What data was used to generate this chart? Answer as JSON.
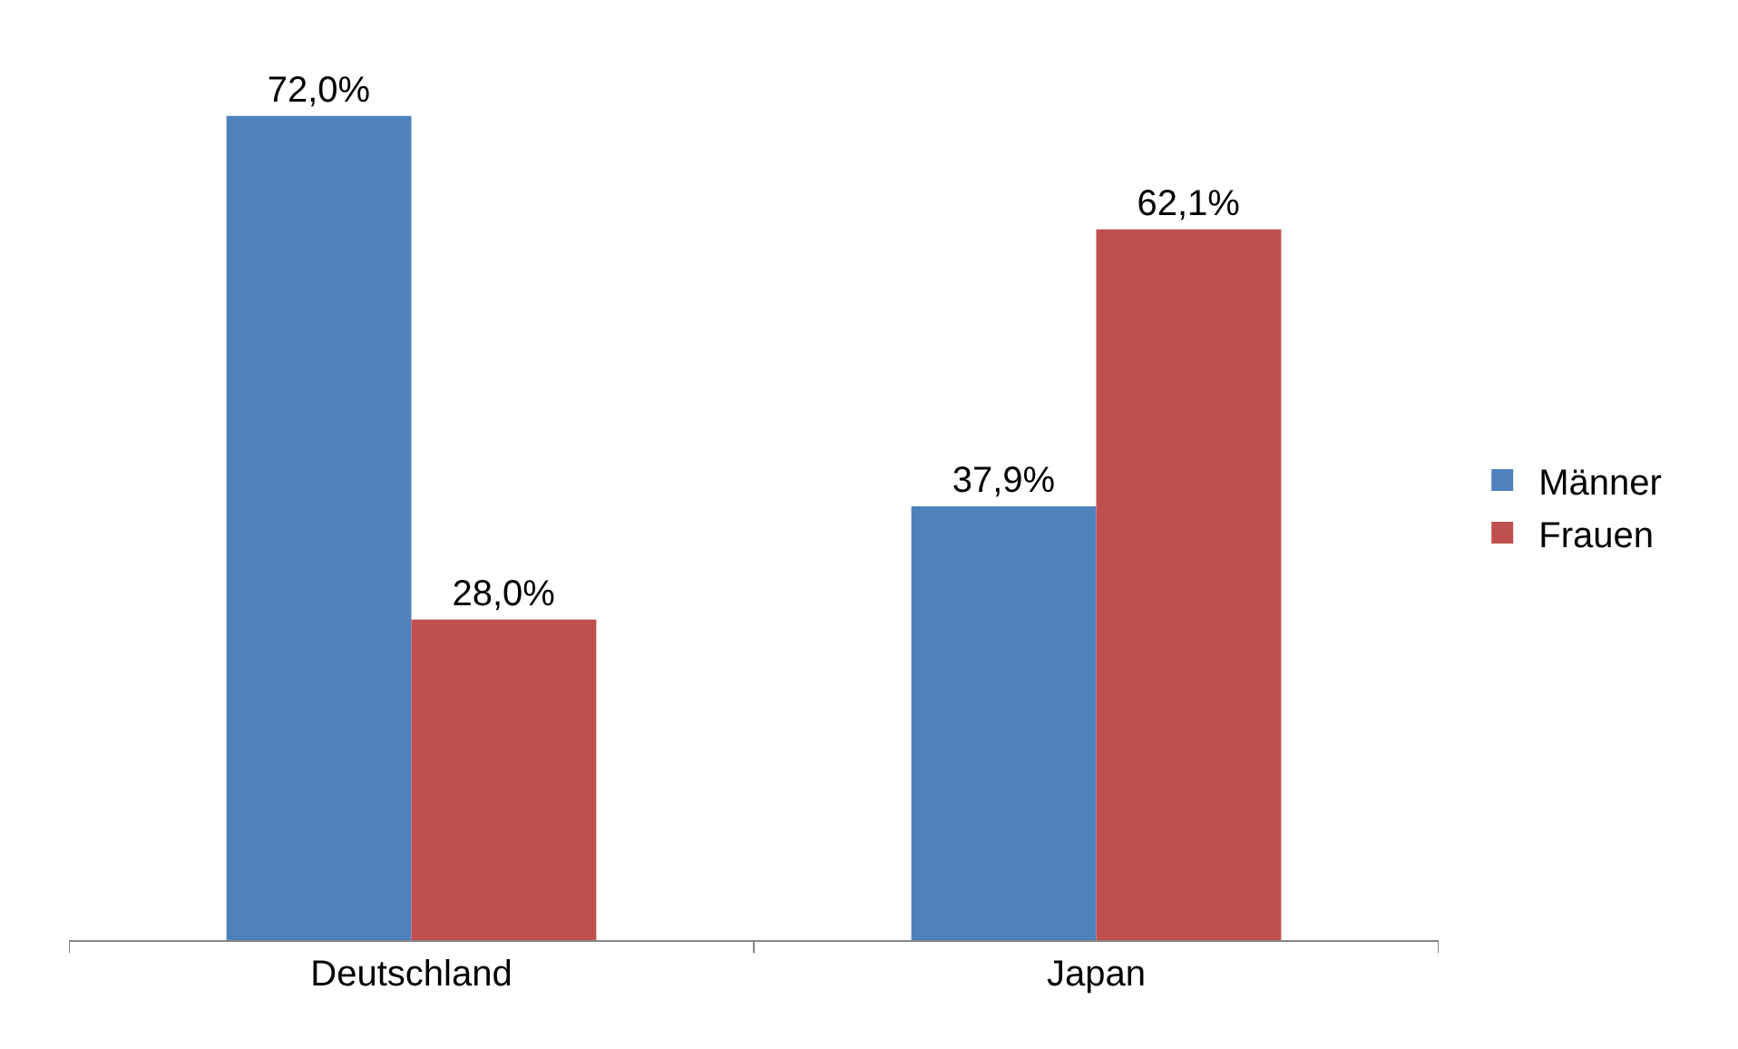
{
  "chart_data": {
    "type": "bar",
    "categories": [
      "Deutschland",
      "Japan"
    ],
    "series": [
      {
        "name": "Männer",
        "color": "#4f81bd",
        "values": [
          72.0,
          37.9
        ],
        "value_labels": [
          "72,0%",
          "37,9%"
        ]
      },
      {
        "name": "Frauen",
        "color": "#c0504d",
        "values": [
          28.0,
          62.1
        ],
        "value_labels": [
          "28,0%",
          "62,1%"
        ]
      }
    ],
    "legend": "right"
  }
}
